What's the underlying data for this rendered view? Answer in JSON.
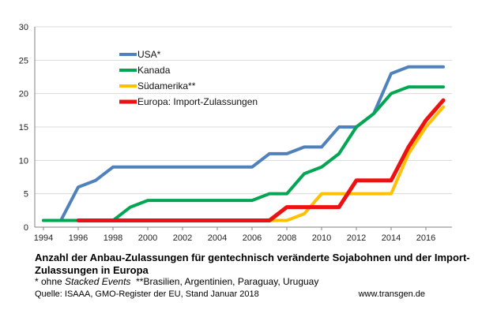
{
  "chart_data": {
    "type": "line",
    "title": "",
    "xlabel": "",
    "ylabel": "",
    "xlim": [
      1993.5,
      2017.5
    ],
    "ylim": [
      0,
      30
    ],
    "yticks": [
      0,
      5,
      10,
      15,
      20,
      25,
      30
    ],
    "xticks": [
      1994,
      1996,
      1998,
      2000,
      2002,
      2004,
      2006,
      2008,
      2010,
      2012,
      2014,
      2016
    ],
    "grid": true,
    "legend_position": "top-left",
    "series": [
      {
        "name": "USA*",
        "color": "#4f81bd",
        "x": [
          1994,
          1995,
          1996,
          1997,
          1998,
          1999,
          2000,
          2001,
          2002,
          2003,
          2004,
          2005,
          2006,
          2007,
          2008,
          2009,
          2010,
          2011,
          2012,
          2013,
          2014,
          2015,
          2016,
          2017
        ],
        "values": [
          1,
          1,
          6,
          7,
          9,
          9,
          9,
          9,
          9,
          9,
          9,
          9,
          9,
          11,
          11,
          12,
          12,
          15,
          15,
          17,
          23,
          24,
          24,
          24
        ]
      },
      {
        "name": "Kanada",
        "color": "#00a651",
        "x": [
          1994,
          1995,
          1996,
          1997,
          1998,
          1999,
          2000,
          2001,
          2002,
          2003,
          2004,
          2005,
          2006,
          2007,
          2008,
          2009,
          2010,
          2011,
          2012,
          2013,
          2014,
          2015,
          2016,
          2017
        ],
        "values": [
          1,
          1,
          1,
          1,
          1,
          3,
          4,
          4,
          4,
          4,
          4,
          4,
          4,
          5,
          5,
          8,
          9,
          11,
          15,
          17,
          20,
          21,
          21,
          21
        ]
      },
      {
        "name": "Südamerika**",
        "color": "#ffc000",
        "x": [
          1996,
          1997,
          1998,
          1999,
          2000,
          2001,
          2002,
          2003,
          2004,
          2005,
          2006,
          2007,
          2008,
          2009,
          2010,
          2011,
          2012,
          2013,
          2014,
          2015,
          2016,
          2017
        ],
        "values": [
          1,
          1,
          1,
          1,
          1,
          1,
          1,
          1,
          1,
          1,
          1,
          1,
          1,
          2,
          5,
          5,
          5,
          5,
          5,
          11,
          15,
          18
        ]
      },
      {
        "name": "Europa: Import-Zulassungen",
        "color": "#ee1111",
        "x": [
          1996,
          1997,
          1998,
          1999,
          2000,
          2001,
          2002,
          2003,
          2004,
          2005,
          2006,
          2007,
          2008,
          2009,
          2010,
          2011,
          2012,
          2013,
          2014,
          2015,
          2016,
          2017
        ],
        "values": [
          1,
          1,
          1,
          1,
          1,
          1,
          1,
          1,
          1,
          1,
          1,
          1,
          3,
          3,
          3,
          3,
          7,
          7,
          7,
          12,
          16,
          19
        ]
      }
    ]
  },
  "caption": {
    "title": "Anzahl der Anbau-Zulassungen für gentechnisch veränderte Sojabohnen und der Import-Zulassungen in Europa",
    "note_prefix": "* ohne ",
    "note_emph": "Stacked Events",
    "note_suffix": "  **Brasilien, Argentinien, Paraguay, Uruguay",
    "source": "Quelle: ISAAA, GMO-Register der EU, Stand Januar 2018",
    "site": "www.transgen.de"
  }
}
